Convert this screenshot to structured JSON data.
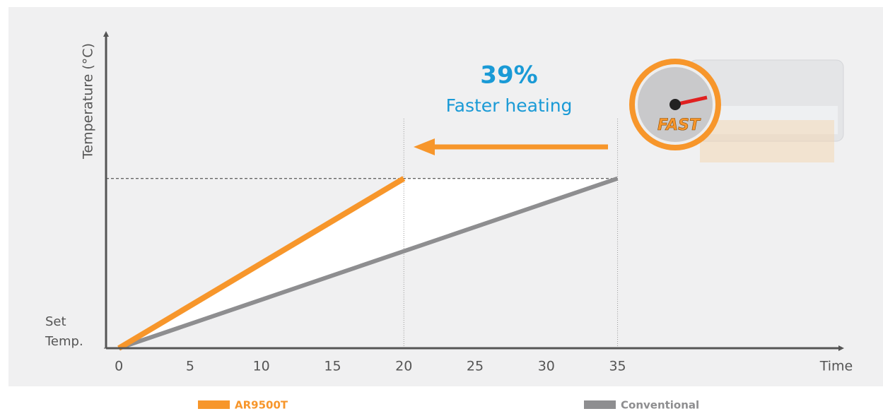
{
  "chart_data": {
    "type": "line",
    "x_label": "Time",
    "y_label": "Temperature (°C)",
    "xlim": [
      -0.9,
      50.7
    ],
    "xticks": [
      0,
      5,
      10,
      15,
      20,
      25,
      30,
      35
    ],
    "ylim": [
      0,
      100
    ],
    "yticks": [
      {
        "value": 0,
        "label": "Set Temp."
      }
    ],
    "series": [
      {
        "name": "AR9500T",
        "color": "#f7962b",
        "x": [
          0,
          20
        ],
        "values": [
          0,
          54
        ]
      },
      {
        "name": "Conventional",
        "color": "#8e8e90",
        "x": [
          0,
          35
        ],
        "values": [
          0,
          54
        ]
      }
    ],
    "annotations": [
      "39%",
      "Faster heating"
    ],
    "badge": "FAST"
  }
}
